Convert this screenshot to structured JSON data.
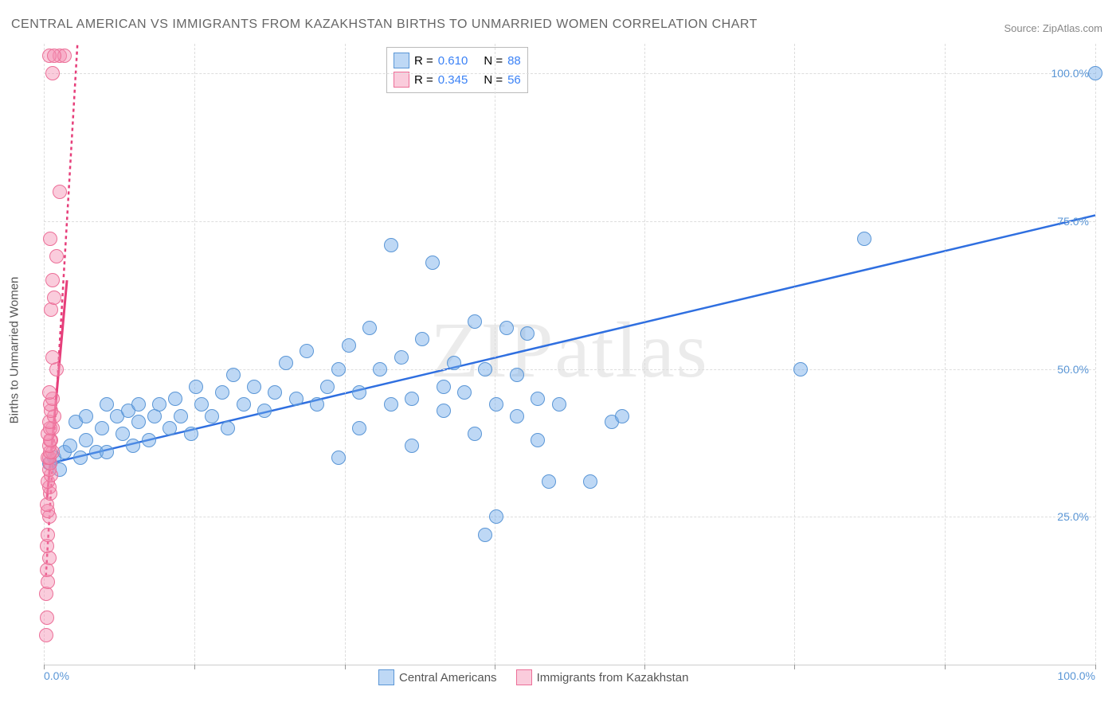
{
  "title": "CENTRAL AMERICAN VS IMMIGRANTS FROM KAZAKHSTAN BIRTHS TO UNMARRIED WOMEN CORRELATION CHART",
  "source_label": "Source: ZipAtlas.com",
  "ylabel": "Births to Unmarried Women",
  "watermark": "ZIPatlas",
  "chart": {
    "type": "scatter",
    "xlim": [
      0,
      100
    ],
    "ylim": [
      0,
      105
    ],
    "background_color": "#ffffff",
    "grid_color": "#dddddd",
    "xtick_positions": [
      0,
      14.3,
      28.6,
      42.9,
      57.1,
      71.4,
      85.7,
      100
    ],
    "ytick_positions": [
      25,
      50,
      75,
      100
    ],
    "ytick_labels": [
      "25.0%",
      "50.0%",
      "75.0%",
      "100.0%"
    ],
    "xtick_label_left": "0.0%",
    "xtick_label_right": "100.0%",
    "marker_radius": 8,
    "marker_stroke_width": 1.2
  },
  "legend_top": {
    "rows": [
      {
        "r_label": "R =",
        "r_value": "0.610",
        "n_label": "N =",
        "n_value": "88"
      },
      {
        "r_label": "R =",
        "r_value": "0.345",
        "n_label": "N =",
        "n_value": "56"
      }
    ],
    "text_color_label": "#555555",
    "text_color_value": "#3b82f6"
  },
  "legend_bottom": {
    "items": [
      {
        "label": "Central Americans"
      },
      {
        "label": "Immigrants from Kazakhstan"
      }
    ]
  },
  "series": [
    {
      "name": "Central Americans",
      "marker_fill": "rgba(110,168,232,0.45)",
      "marker_stroke": "#5a96d6",
      "trend": {
        "x1": 0.5,
        "y1": 34,
        "x2": 100,
        "y2": 76,
        "color": "#2f6fe0",
        "width": 2.5,
        "dash": "none"
      },
      "points": [
        [
          0.5,
          34
        ],
        [
          1,
          35
        ],
        [
          1.5,
          33
        ],
        [
          2,
          36
        ],
        [
          2.5,
          37
        ],
        [
          3,
          41
        ],
        [
          3.5,
          35
        ],
        [
          4,
          38
        ],
        [
          4,
          42
        ],
        [
          5,
          36
        ],
        [
          5.5,
          40
        ],
        [
          6,
          44
        ],
        [
          6,
          36
        ],
        [
          7,
          42
        ],
        [
          7.5,
          39
        ],
        [
          8,
          43
        ],
        [
          8.5,
          37
        ],
        [
          9,
          41
        ],
        [
          9,
          44
        ],
        [
          10,
          38
        ],
        [
          10.5,
          42
        ],
        [
          11,
          44
        ],
        [
          12,
          40
        ],
        [
          12.5,
          45
        ],
        [
          13,
          42
        ],
        [
          14,
          39
        ],
        [
          14.5,
          47
        ],
        [
          15,
          44
        ],
        [
          16,
          42
        ],
        [
          17,
          46
        ],
        [
          17.5,
          40
        ],
        [
          18,
          49
        ],
        [
          19,
          44
        ],
        [
          20,
          47
        ],
        [
          21,
          43
        ],
        [
          22,
          46
        ],
        [
          23,
          51
        ],
        [
          24,
          45
        ],
        [
          25,
          53
        ],
        [
          26,
          44
        ],
        [
          27,
          47
        ],
        [
          28,
          50
        ],
        [
          28,
          35
        ],
        [
          29,
          54
        ],
        [
          30,
          46
        ],
        [
          30,
          40
        ],
        [
          31,
          57
        ],
        [
          32,
          50
        ],
        [
          33,
          44
        ],
        [
          33,
          71
        ],
        [
          34,
          52
        ],
        [
          35,
          37
        ],
        [
          35,
          45
        ],
        [
          36,
          55
        ],
        [
          37,
          68
        ],
        [
          38,
          47
        ],
        [
          38,
          43
        ],
        [
          39,
          51
        ],
        [
          40,
          46
        ],
        [
          41,
          58
        ],
        [
          41,
          39
        ],
        [
          42,
          50
        ],
        [
          42,
          22
        ],
        [
          43,
          44
        ],
        [
          43,
          25
        ],
        [
          44,
          57
        ],
        [
          45,
          49
        ],
        [
          45,
          42
        ],
        [
          46,
          56
        ],
        [
          47,
          45
        ],
        [
          47,
          38
        ],
        [
          48,
          31
        ],
        [
          49,
          44
        ],
        [
          52,
          31
        ],
        [
          54,
          41
        ],
        [
          55,
          42
        ],
        [
          72,
          50
        ],
        [
          78,
          72
        ],
        [
          100,
          100
        ]
      ]
    },
    {
      "name": "Immigrants from Kazakhstan",
      "marker_fill": "rgba(244,143,177,0.45)",
      "marker_stroke": "#ec6f98",
      "trend": {
        "x1": 0.2,
        "y1": 15,
        "x2": 3.2,
        "y2": 105,
        "color": "#e63e7a",
        "width": 2.5,
        "dash": "4,4"
      },
      "trend_solid": {
        "x1": 0.3,
        "y1": 28,
        "x2": 2.2,
        "y2": 65,
        "color": "#e63e7a",
        "width": 3,
        "dash": "none"
      },
      "points": [
        [
          0.2,
          5
        ],
        [
          0.3,
          8
        ],
        [
          0.2,
          12
        ],
        [
          0.4,
          14
        ],
        [
          0.3,
          16
        ],
        [
          0.5,
          18
        ],
        [
          0.3,
          20
        ],
        [
          0.4,
          22
        ],
        [
          0.5,
          25
        ],
        [
          0.4,
          26
        ],
        [
          0.3,
          27
        ],
        [
          0.6,
          29
        ],
        [
          0.5,
          30
        ],
        [
          0.4,
          31
        ],
        [
          0.7,
          32
        ],
        [
          0.5,
          33
        ],
        [
          0.6,
          34
        ],
        [
          0.4,
          35
        ],
        [
          0.5,
          35
        ],
        [
          0.8,
          36
        ],
        [
          0.6,
          36
        ],
        [
          0.5,
          37
        ],
        [
          0.7,
          38
        ],
        [
          0.6,
          38
        ],
        [
          0.4,
          39
        ],
        [
          0.8,
          40
        ],
        [
          0.6,
          40
        ],
        [
          0.5,
          41
        ],
        [
          1.0,
          42
        ],
        [
          0.7,
          43
        ],
        [
          0.6,
          44
        ],
        [
          0.8,
          45
        ],
        [
          0.5,
          46
        ],
        [
          1.2,
          50
        ],
        [
          0.8,
          52
        ],
        [
          0.7,
          60
        ],
        [
          1.0,
          62
        ],
        [
          0.8,
          65
        ],
        [
          1.2,
          69
        ],
        [
          0.6,
          72
        ],
        [
          1.5,
          80
        ],
        [
          0.8,
          100
        ],
        [
          1.5,
          103
        ],
        [
          0.5,
          103
        ],
        [
          2.0,
          103
        ],
        [
          1.0,
          103
        ]
      ]
    }
  ]
}
